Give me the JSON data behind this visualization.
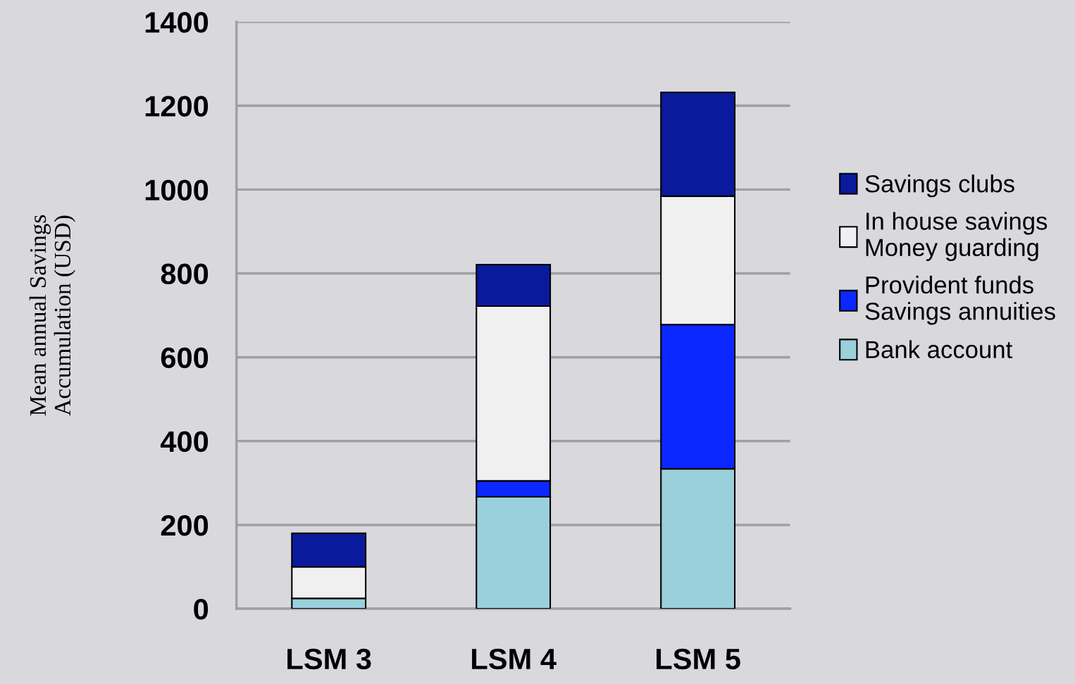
{
  "chart_data": {
    "type": "bar",
    "stacked": true,
    "ylabel": "Mean annual Savings\nAccumulation (USD)",
    "categories": [
      "LSM 3",
      "LSM 4",
      "LSM 5"
    ],
    "series": [
      {
        "name": "Bank account",
        "color": "#99d0dc",
        "values": [
          25,
          267,
          334
        ]
      },
      {
        "name": "Provident funds\nSavings annuities",
        "color": "#0a28ff",
        "values": [
          0,
          38,
          344
        ]
      },
      {
        "name": "In house savings\nMoney guarding",
        "color": "#f0f0f0",
        "values": [
          75,
          417,
          306
        ]
      },
      {
        "name": "Savings clubs",
        "color": "#0a1a9c",
        "values": [
          80,
          99,
          248
        ]
      }
    ],
    "ylim": [
      0,
      1400
    ],
    "yticks": [
      0,
      200,
      400,
      600,
      800,
      1000,
      1200,
      1400
    ],
    "grid": "y",
    "legend": "right"
  }
}
